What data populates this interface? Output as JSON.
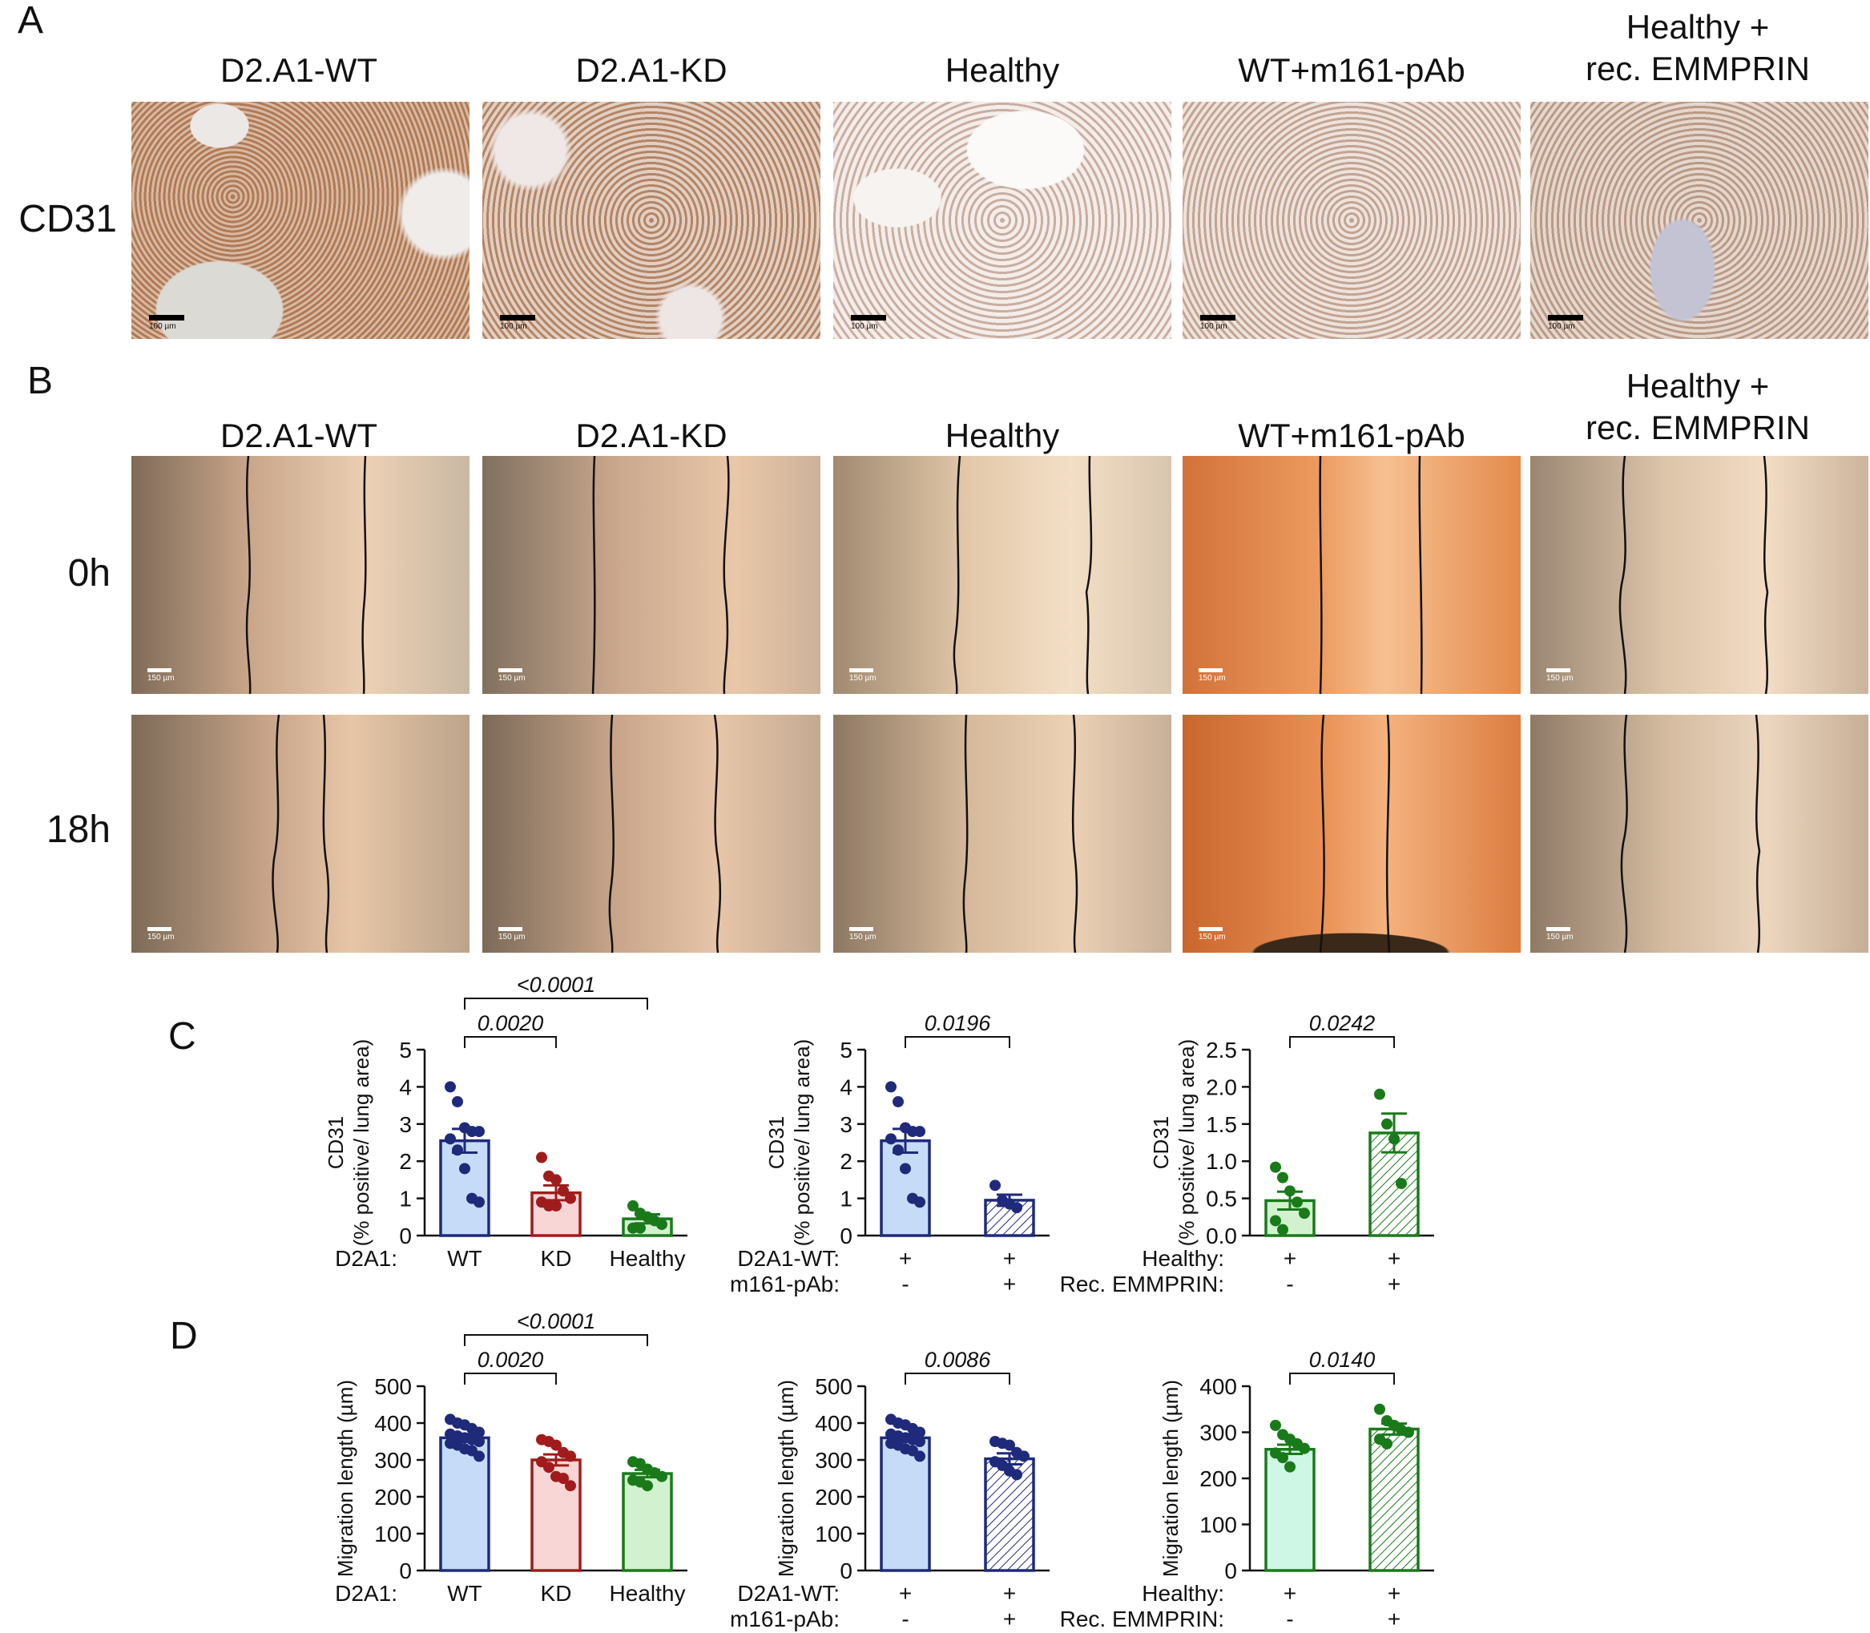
{
  "panels": {
    "a": {
      "letter": "A",
      "row_label": "CD31",
      "scalebar_label": "100 µm"
    },
    "b": {
      "letter": "B",
      "row_labels": [
        "0h",
        "18h"
      ],
      "scalebar_label": "150 µm"
    },
    "c": {
      "letter": "C"
    },
    "d": {
      "letter": "D"
    }
  },
  "column_headers": [
    {
      "line1": "D2.A1-WT",
      "line2": ""
    },
    {
      "line1": "D2.A1-KD",
      "line2": ""
    },
    {
      "line1": "Healthy",
      "line2": ""
    },
    {
      "line1": "WT+m161-pAb",
      "line2": ""
    },
    {
      "line1": "Healthy +",
      "line2": "rec. EMMPRIN"
    }
  ],
  "colors": {
    "navy": "#1f2a7a",
    "blue_fill": "#c6dbf7",
    "red": "#a01c1c",
    "red_fill": "#f8d6d6",
    "green": "#1a7a1a",
    "green_fill": "#d2f2cf",
    "mint_fill": "#cff7e6",
    "ihc_brown": "#b5835e",
    "ihc_pale": "#d9c7bd",
    "scratch_dark": "#7a6450",
    "scratch_light": "#e8caa8",
    "scratch_orange": "#e8884d"
  },
  "chart_data": [
    {
      "id": "C1",
      "type": "bar",
      "ylabel_line1": "CD31",
      "ylabel_line2": "(% positive/ lung area)",
      "ylim": [
        0,
        5
      ],
      "yticks": [
        "0",
        "1",
        "2",
        "3",
        "4",
        "5"
      ],
      "categories": [
        "WT",
        "KD",
        "Healthy"
      ],
      "group_rows": [
        {
          "label": "D2A1:",
          "cells": [
            "WT",
            "KD",
            "Healthy"
          ]
        }
      ],
      "values": [
        2.55,
        1.15,
        0.45
      ],
      "errors": [
        0.32,
        0.2,
        0.12
      ],
      "fill_styles": [
        "blue",
        "red",
        "green"
      ],
      "points": [
        [
          4.0,
          3.6,
          2.9,
          2.8,
          2.8,
          2.6,
          2.3,
          1.8,
          1.0,
          0.9
        ],
        [
          2.1,
          1.6,
          1.5,
          1.2,
          1.0,
          0.9,
          0.8,
          0.8
        ],
        [
          0.8,
          0.6,
          0.5,
          0.4,
          0.3,
          0.2,
          0.2
        ]
      ],
      "comparisons": [
        {
          "from": 0,
          "to": 1,
          "label": "0.0020"
        },
        {
          "from": 0,
          "to": 2,
          "label": "<0.0001"
        }
      ]
    },
    {
      "id": "C2",
      "type": "bar",
      "ylabel_line1": "CD31",
      "ylabel_line2": "(% positive/ lung area)",
      "ylim": [
        0,
        5
      ],
      "yticks": [
        "0",
        "1",
        "2",
        "3",
        "4",
        "5"
      ],
      "categories": [
        "D2A1-WT",
        "D2A1-WT + m161-pAb"
      ],
      "group_rows": [
        {
          "label": "D2A1-WT:",
          "cells": [
            "+",
            "+"
          ]
        },
        {
          "label": "m161-pAb:",
          "cells": [
            "-",
            "+"
          ]
        }
      ],
      "values": [
        2.55,
        0.95
      ],
      "errors": [
        0.32,
        0.15
      ],
      "fill_styles": [
        "blue",
        "navy-hatch"
      ],
      "points": [
        [
          4.0,
          3.6,
          2.9,
          2.8,
          2.8,
          2.6,
          2.3,
          1.8,
          1.0,
          0.9
        ],
        [
          1.35,
          0.95,
          0.85,
          0.75
        ]
      ],
      "comparisons": [
        {
          "from": 0,
          "to": 1,
          "label": "0.0196"
        }
      ]
    },
    {
      "id": "C3",
      "type": "bar",
      "ylabel_line1": "CD31",
      "ylabel_line2": "(% positive/ lung area)",
      "ylim": [
        0,
        2.5
      ],
      "yticks": [
        "0.0",
        "0.5",
        "1.0",
        "1.5",
        "2.0",
        "2.5"
      ],
      "categories": [
        "Healthy",
        "Healthy + Rec. EMMPRIN"
      ],
      "group_rows": [
        {
          "label": "Healthy:",
          "cells": [
            "+",
            "+"
          ]
        },
        {
          "label": "Rec. EMMPRIN:",
          "cells": [
            "-",
            "+"
          ]
        }
      ],
      "values": [
        0.47,
        1.38
      ],
      "errors": [
        0.12,
        0.26
      ],
      "fill_styles": [
        "green",
        "green-hatch"
      ],
      "points": [
        [
          0.92,
          0.78,
          0.6,
          0.45,
          0.3,
          0.2,
          0.08
        ],
        [
          1.9,
          1.5,
          1.3,
          0.7
        ]
      ],
      "comparisons": [
        {
          "from": 0,
          "to": 1,
          "label": "0.0242"
        }
      ]
    },
    {
      "id": "D1",
      "type": "bar",
      "ylabel_line1": "Migration length (µm)",
      "ylabel_line2": "",
      "ylim": [
        0,
        500
      ],
      "yticks": [
        "0",
        "100",
        "200",
        "300",
        "400",
        "500"
      ],
      "categories": [
        "WT",
        "KD",
        "Healthy"
      ],
      "group_rows": [
        {
          "label": "D2A1:",
          "cells": [
            "WT",
            "KD",
            "Healthy"
          ]
        }
      ],
      "values": [
        360,
        300,
        263
      ],
      "errors": [
        10,
        15,
        10
      ],
      "fill_styles": [
        "blue",
        "red",
        "mint-green"
      ],
      "points": [
        [
          410,
          400,
          395,
          385,
          375,
          370,
          365,
          360,
          355,
          350,
          345,
          340,
          330,
          325,
          310
        ],
        [
          355,
          350,
          340,
          320,
          310,
          295,
          280,
          255,
          250,
          230
        ],
        [
          295,
          290,
          275,
          265,
          255,
          245,
          240,
          230
        ]
      ],
      "comparisons": [
        {
          "from": 0,
          "to": 1,
          "label": "0.0020"
        },
        {
          "from": 0,
          "to": 2,
          "label": "<0.0001"
        }
      ]
    },
    {
      "id": "D2",
      "type": "bar",
      "ylabel_line1": "Migration length (µm)",
      "ylabel_line2": "",
      "ylim": [
        0,
        500
      ],
      "yticks": [
        "0",
        "100",
        "200",
        "300",
        "400",
        "500"
      ],
      "categories": [
        "D2A1-WT",
        "D2A1-WT + m161-pAb"
      ],
      "group_rows": [
        {
          "label": "D2A1-WT:",
          "cells": [
            "+",
            "+"
          ]
        },
        {
          "label": "m161-pAb:",
          "cells": [
            "-",
            "+"
          ]
        }
      ],
      "values": [
        360,
        303
      ],
      "errors": [
        10,
        15
      ],
      "fill_styles": [
        "blue",
        "navy-hatch"
      ],
      "points": [
        [
          410,
          400,
          395,
          385,
          375,
          370,
          365,
          360,
          355,
          350,
          345,
          340,
          330,
          325,
          310
        ],
        [
          350,
          345,
          340,
          320,
          310,
          295,
          285,
          270,
          260
        ]
      ],
      "comparisons": [
        {
          "from": 0,
          "to": 1,
          "label": "0.0086"
        }
      ]
    },
    {
      "id": "D3",
      "type": "bar",
      "ylabel_line1": "Migration length (µm)",
      "ylabel_line2": "",
      "ylim": [
        0,
        400
      ],
      "yticks": [
        "0",
        "100",
        "200",
        "300",
        "400"
      ],
      "categories": [
        "Healthy",
        "Healthy + Rec. EMMPRIN"
      ],
      "group_rows": [
        {
          "label": "Healthy:",
          "cells": [
            "+",
            "+"
          ]
        },
        {
          "label": "Rec. EMMPRIN:",
          "cells": [
            "-",
            "+"
          ]
        }
      ],
      "values": [
        263,
        307
      ],
      "errors": [
        10,
        12
      ],
      "fill_styles": [
        "mint",
        "green-hatch"
      ],
      "points": [
        [
          315,
          295,
          285,
          275,
          265,
          255,
          245,
          225
        ],
        [
          350,
          325,
          315,
          305,
          300,
          285,
          275
        ]
      ],
      "comparisons": [
        {
          "from": 0,
          "to": 1,
          "label": "0.0140"
        }
      ]
    }
  ]
}
